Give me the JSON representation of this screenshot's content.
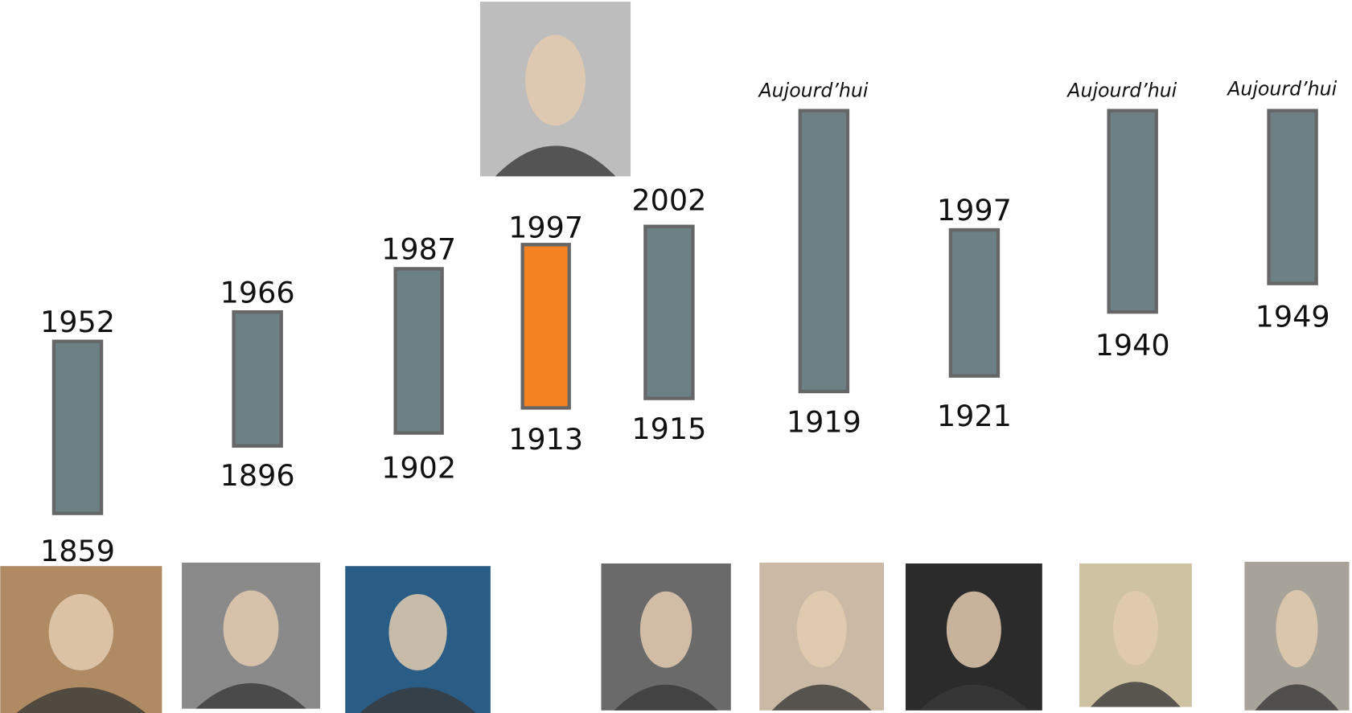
{
  "timeline": [
    {
      "end": "1952",
      "start": "1859",
      "color": "#6b8185"
    },
    {
      "end": "1966",
      "start": "1896",
      "color": "#6b8185"
    },
    {
      "end": "1987",
      "start": "1902",
      "color": "#6b8185"
    },
    {
      "end": "1997",
      "start": "1913",
      "color": "#f58220"
    },
    {
      "end": "2002",
      "start": "1915",
      "color": "#6b8185"
    },
    {
      "end": "Aujourd’hui",
      "start": "1919",
      "color": "#6b8185"
    },
    {
      "end": "1997",
      "start": "1921",
      "color": "#6b8185"
    },
    {
      "end": "Aujourd’hui",
      "start": "1940",
      "color": "#6b8185"
    },
    {
      "end": "Aujourd’hui",
      "start": "1949",
      "color": "#6b8185"
    }
  ]
}
